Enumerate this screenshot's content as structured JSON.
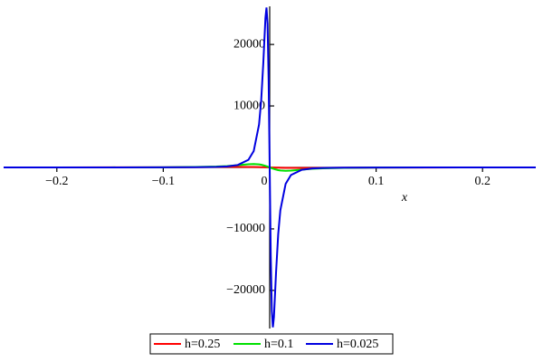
{
  "chart_data": {
    "type": "line",
    "x_label": "x",
    "x": [
      -0.25,
      -0.2,
      -0.15,
      -0.1,
      -0.07,
      -0.05,
      -0.04,
      -0.03,
      -0.02,
      -0.015,
      -0.01,
      -0.008,
      -0.006,
      -0.004,
      -0.003,
      -0.002,
      -0.001,
      0,
      0.001,
      0.002,
      0.003,
      0.004,
      0.006,
      0.008,
      0.01,
      0.015,
      0.02,
      0.03,
      0.04,
      0.05,
      0.07,
      0.1,
      0.15,
      0.2,
      0.25
    ],
    "series": [
      {
        "name": "h=0.25",
        "color": "#ff0000",
        "values": [
          3,
          5,
          10,
          25,
          50,
          75,
          85,
          90,
          80,
          65,
          48,
          39,
          30,
          20,
          15,
          10,
          5,
          0,
          -5,
          -10,
          -15,
          -20,
          -30,
          -39,
          -48,
          -65,
          -80,
          -90,
          -85,
          -75,
          -50,
          -25,
          -10,
          -5,
          -3
        ]
      },
      {
        "name": "h=0.1",
        "color": "#00e000",
        "values": [
          2,
          4,
          8,
          26,
          67,
          147,
          230,
          360,
          514,
          550,
          494,
          435,
          352,
          249,
          190,
          129,
          65,
          0,
          -65,
          -129,
          -190,
          -249,
          -352,
          -435,
          -494,
          -550,
          -514,
          -360,
          -230,
          -147,
          -67,
          -26,
          -8,
          -4,
          -2
        ]
      },
      {
        "name": "h=0.025",
        "color": "#0000e0",
        "values": [
          1,
          1,
          3,
          11,
          32,
          88,
          170,
          393,
          1235,
          2658,
          6975,
          10865,
          16996,
          24308,
          26000,
          23366,
          14316,
          0,
          -14316,
          -23366,
          -26000,
          -24308,
          -16996,
          -10865,
          -6975,
          -2658,
          -1235,
          -393,
          -170,
          -88,
          -32,
          -11,
          -3,
          -1,
          -1
        ]
      }
    ],
    "xlim": [
      -0.25,
      0.25
    ],
    "ylim": [
      -26200,
      26200
    ],
    "xticks": [
      {
        "value": -0.2,
        "label": "−0.2"
      },
      {
        "value": -0.1,
        "label": "−0.1"
      },
      0,
      0.1,
      0.2
    ],
    "yticks": [
      {
        "value": -20000,
        "label": "−20000"
      },
      {
        "value": -10000,
        "label": "−10000"
      },
      10000,
      20000
    ]
  }
}
